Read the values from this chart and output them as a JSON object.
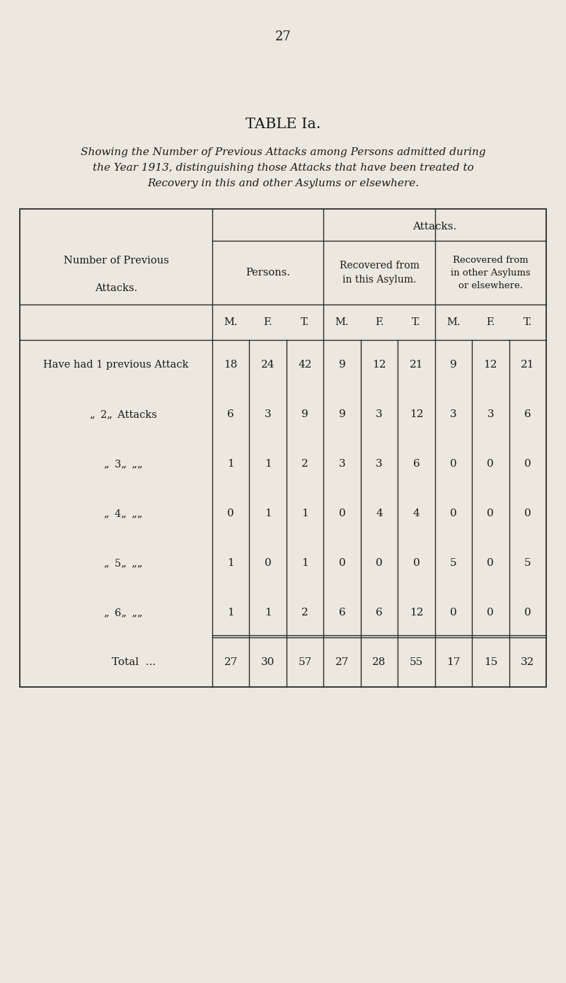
{
  "page_number": "27",
  "title": "TABLE Ia.",
  "subtitle_line1": "Showing the Number of Previous Attacks among Persons admitted during",
  "subtitle_line2": "the Year 1913, distinguishing those Attacks that have been treated to",
  "subtitle_line3": "Recovery in this and other Asylums or elsewhere.",
  "background_color": "#ede8df",
  "rows": [
    [
      "Have had 1 previous Attack",
      "18",
      "24",
      "42",
      "9",
      "12",
      "21",
      "9",
      "12",
      "21"
    ],
    [
      ",, 2 ,, Attacks",
      "6",
      "3",
      "9",
      "9",
      "3",
      "12",
      "3",
      "3",
      "6"
    ],
    [
      ",, 3 ,, ,,",
      "1",
      "1",
      "2",
      "3",
      "3",
      "6",
      "0",
      "0",
      "0"
    ],
    [
      ",, 4 ,, ,,",
      "0",
      "1",
      "1",
      "0",
      "4",
      "4",
      "0",
      "0",
      "0"
    ],
    [
      ",, 5 ,, ,,",
      "1",
      "0",
      "1",
      "0",
      "0",
      "0",
      "5",
      "0",
      "5"
    ],
    [
      ",, 6 ,, ,,",
      "1",
      "1",
      "2",
      "6",
      "6",
      "12",
      "0",
      "0",
      "0"
    ]
  ],
  "total_row": [
    "Total  ...",
    "27",
    "30",
    "57",
    "27",
    "28",
    "55",
    "17",
    "15",
    "32"
  ],
  "col_labels": [
    "M.",
    "F.",
    "T.",
    "M.",
    "F.",
    "T.",
    "M.",
    "F.",
    "T."
  ],
  "row_display_labels": [
    "Have had 1 previous Attack",
    ",,   2  ,,   Attacks",
    ",,   3  ,,    ,,",
    ",,   4  ,,    ,,",
    ",,   5  ,,    ,,",
    ",,   6  ,,    ,,"
  ]
}
